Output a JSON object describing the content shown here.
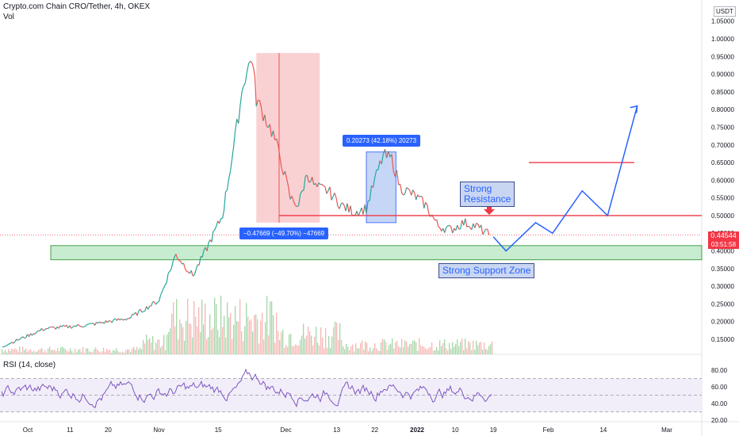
{
  "header": {
    "symbol_title": "Crypto.com Chain CRO/Tether, 4h, OKEX",
    "vol_label": "Vol",
    "currency": "USDT"
  },
  "rsi": {
    "title": "RSI (14, close)"
  },
  "price_tag": {
    "price": "0.44544",
    "countdown": "03:51:58"
  },
  "annotations": {
    "resistance": "Strong\nResistance",
    "support": "Strong Support Zone",
    "drop": "−0.47669 (−49.70%) −47669",
    "rise": "0.20273 (42.18%) 20273"
  },
  "colors": {
    "up": "#26a69a",
    "down": "#ef5350",
    "resistance_line": "#f23645",
    "support_fill": "#c8ecd0",
    "projection": "#2962ff",
    "rsi_line": "#7e57c2",
    "drop_box": "#f9c5c8",
    "rise_box": "#bccff5"
  },
  "chart_data": {
    "type": "line",
    "title": "Crypto.com Chain CRO/Tether, 4h, OKEX",
    "y_axis_ticks": [
      "1.05000",
      "1.00000",
      "0.95000",
      "0.90000",
      "0.85000",
      "0.80000",
      "0.75000",
      "0.70000",
      "0.65000",
      "0.60000",
      "0.55000",
      "0.50000",
      "0.45000",
      "0.40000",
      "0.35000",
      "0.30000",
      "0.25000",
      "0.20000",
      "0.15000"
    ],
    "x_axis_ticks": [
      "Oct",
      "11",
      "20",
      "Nov",
      "15",
      "Dec",
      "13",
      "22",
      "2022",
      "10",
      "19",
      "Feb",
      "14",
      "Mar"
    ],
    "rsi_ticks": [
      "80.00",
      "60.00",
      "40.00",
      "20.00"
    ],
    "ylim": [
      0.12,
      1.06
    ],
    "series": [
      {
        "name": "CRO/USDT",
        "x": [
          "2021-09-25",
          "2021-10-05",
          "2021-10-15",
          "2021-10-25",
          "2021-11-01",
          "2021-11-05",
          "2021-11-09",
          "2021-11-12",
          "2021-11-16",
          "2021-11-19",
          "2021-11-21",
          "2021-11-23",
          "2021-11-24",
          "2021-11-26",
          "2021-11-28",
          "2021-11-30",
          "2021-12-02",
          "2021-12-04",
          "2021-12-06",
          "2021-12-08",
          "2021-12-11",
          "2021-12-14",
          "2021-12-17",
          "2021-12-20",
          "2021-12-22",
          "2021-12-24",
          "2021-12-26",
          "2021-12-28",
          "2021-12-31",
          "2022-01-03",
          "2022-01-06",
          "2022-01-09",
          "2022-01-12",
          "2022-01-15",
          "2022-01-18"
        ],
        "values": [
          0.13,
          0.18,
          0.19,
          0.21,
          0.26,
          0.39,
          0.33,
          0.4,
          0.5,
          0.72,
          0.88,
          0.95,
          0.83,
          0.78,
          0.73,
          0.65,
          0.55,
          0.53,
          0.62,
          0.58,
          0.57,
          0.53,
          0.51,
          0.52,
          0.6,
          0.67,
          0.66,
          0.58,
          0.56,
          0.53,
          0.47,
          0.46,
          0.48,
          0.47,
          0.445
        ]
      },
      {
        "name": "Projection",
        "x": [
          "2022-01-19",
          "2022-01-22",
          "2022-01-29",
          "2022-02-02",
          "2022-02-09",
          "2022-02-15",
          "2022-02-22"
        ],
        "values": [
          0.44,
          0.4,
          0.48,
          0.45,
          0.57,
          0.5,
          0.81
        ]
      }
    ],
    "levels": {
      "resistance": 0.5,
      "target_line": 0.65,
      "support_zone": [
        0.375,
        0.415
      ],
      "current_price": 0.44544
    },
    "measures": [
      {
        "label": "−0.47669 (−49.70%) −47669",
        "from": 0.96,
        "to": 0.48
      },
      {
        "label": "0.20273 (42.18%) 20273",
        "from": 0.48,
        "to": 0.68
      }
    ]
  }
}
